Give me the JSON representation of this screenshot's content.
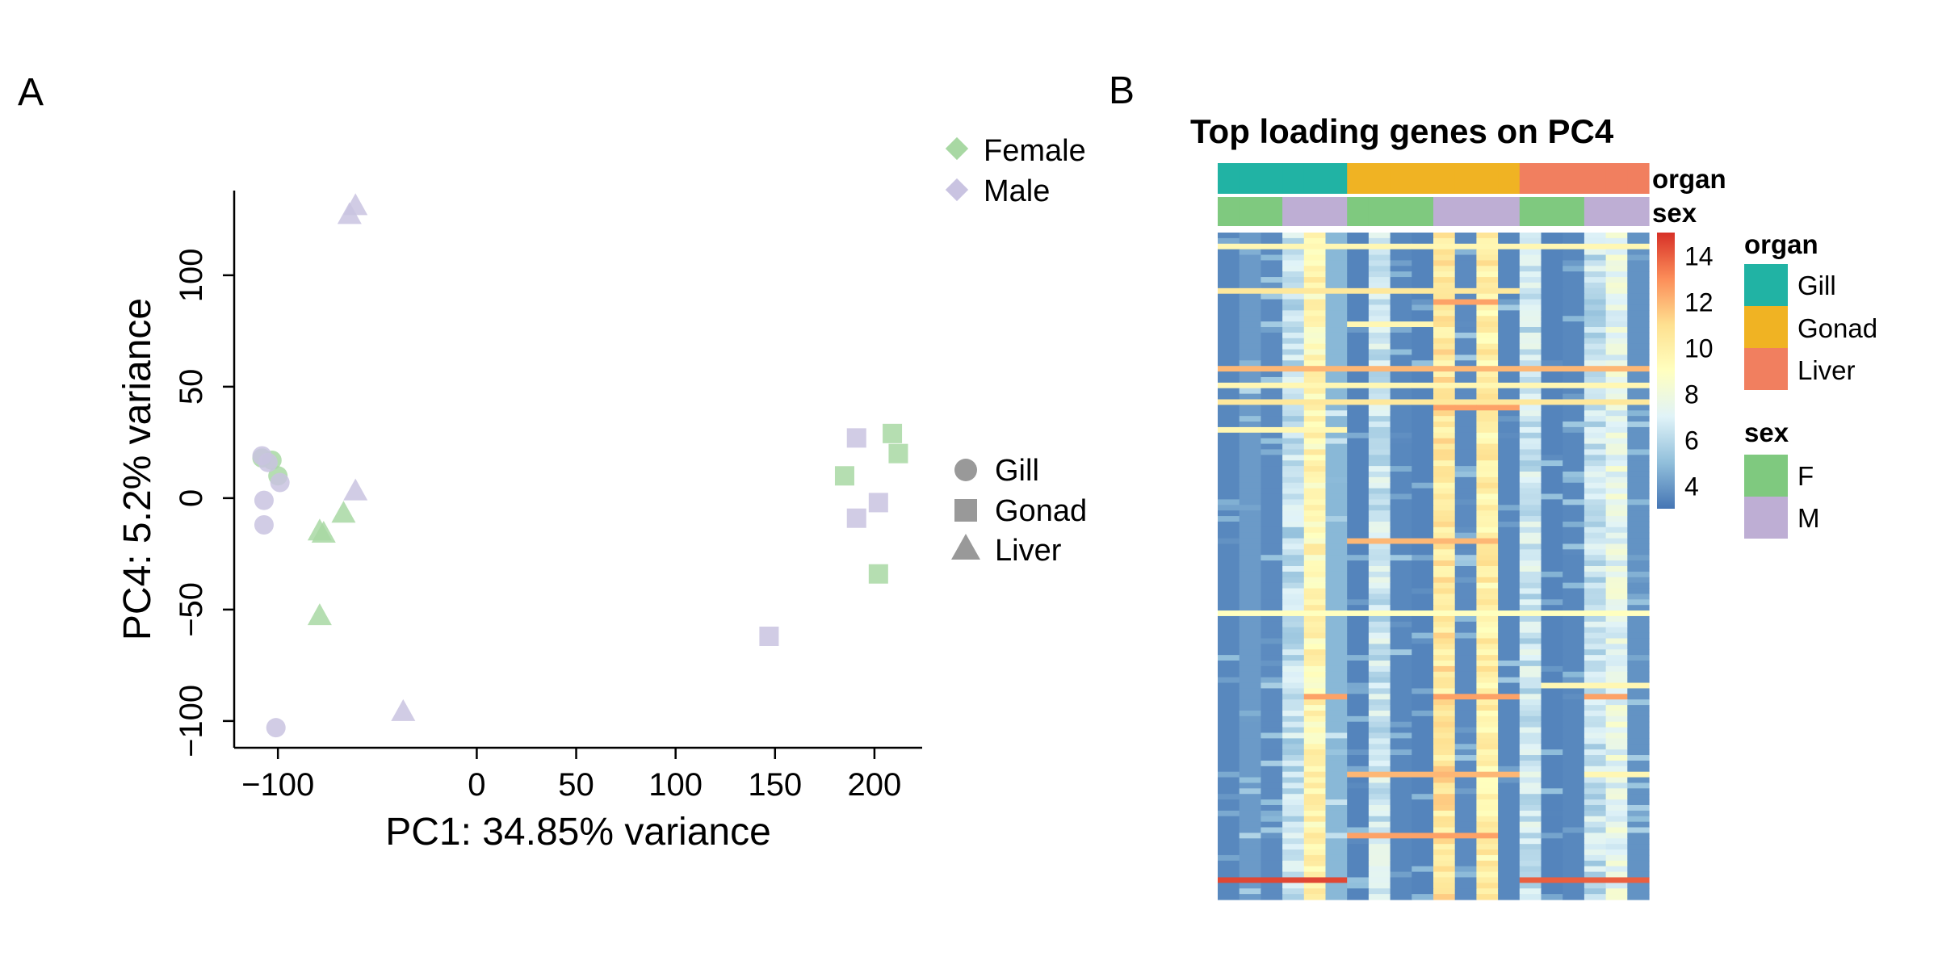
{
  "panels": {
    "a": "A",
    "b": "B"
  },
  "chart_data": [
    {
      "type": "scatter",
      "title": "",
      "xlabel": "PC1: 34.85% variance",
      "ylabel": "PC4: 5.2% variance",
      "xlim": [
        -122,
        224
      ],
      "ylim": [
        -112,
        138
      ],
      "xticks": [
        -100,
        0,
        50,
        100,
        150,
        200
      ],
      "xtick_labels": [
        "−100",
        "0",
        "50",
        "100",
        "150",
        "200"
      ],
      "yticks": [
        -100,
        -50,
        0,
        50,
        100
      ],
      "ytick_labels": [
        "−100",
        "−50",
        "0",
        "50",
        "100"
      ],
      "grid": false,
      "legend_color": {
        "items": [
          {
            "label": "Female",
            "color": "#a8d8a3"
          },
          {
            "label": "Male",
            "color": "#c9c3e1"
          }
        ]
      },
      "legend_shape": {
        "items": [
          {
            "label": "Gill",
            "shape": "circle"
          },
          {
            "label": "Gonad",
            "shape": "square"
          },
          {
            "label": "Liver",
            "shape": "triangle"
          }
        ]
      },
      "points": [
        {
          "x": -108,
          "y": 18,
          "organ": "Gill",
          "sex": "Female"
        },
        {
          "x": -103,
          "y": 17,
          "organ": "Gill",
          "sex": "Female"
        },
        {
          "x": -100,
          "y": 10,
          "organ": "Gill",
          "sex": "Female"
        },
        {
          "x": -105,
          "y": 16,
          "organ": "Gill",
          "sex": "Male"
        },
        {
          "x": -108,
          "y": 19,
          "organ": "Gill",
          "sex": "Male"
        },
        {
          "x": -99,
          "y": 7,
          "organ": "Gill",
          "sex": "Male"
        },
        {
          "x": -107,
          "y": -1,
          "organ": "Gill",
          "sex": "Male"
        },
        {
          "x": -107,
          "y": -12,
          "organ": "Gill",
          "sex": "Male"
        },
        {
          "x": -101,
          "y": -103,
          "organ": "Gill",
          "sex": "Male"
        },
        {
          "x": 185,
          "y": 10,
          "organ": "Gonad",
          "sex": "Female"
        },
        {
          "x": 209,
          "y": 29,
          "organ": "Gonad",
          "sex": "Female"
        },
        {
          "x": 212,
          "y": 20,
          "organ": "Gonad",
          "sex": "Female"
        },
        {
          "x": 202,
          "y": -34,
          "organ": "Gonad",
          "sex": "Female"
        },
        {
          "x": 191,
          "y": 27,
          "organ": "Gonad",
          "sex": "Male"
        },
        {
          "x": 191,
          "y": -9,
          "organ": "Gonad",
          "sex": "Male"
        },
        {
          "x": 202,
          "y": -2,
          "organ": "Gonad",
          "sex": "Male"
        },
        {
          "x": 147,
          "y": -62,
          "organ": "Gonad",
          "sex": "Male"
        },
        {
          "x": -79,
          "y": -15,
          "organ": "Liver",
          "sex": "Female"
        },
        {
          "x": -77,
          "y": -16,
          "organ": "Liver",
          "sex": "Female"
        },
        {
          "x": -67,
          "y": -7,
          "organ": "Liver",
          "sex": "Female"
        },
        {
          "x": -79,
          "y": -53,
          "organ": "Liver",
          "sex": "Female"
        },
        {
          "x": -61,
          "y": 131,
          "organ": "Liver",
          "sex": "Male"
        },
        {
          "x": -64,
          "y": 127,
          "organ": "Liver",
          "sex": "Male"
        },
        {
          "x": -61,
          "y": 3,
          "organ": "Liver",
          "sex": "Male"
        },
        {
          "x": -37,
          "y": -96,
          "organ": "Liver",
          "sex": "Male"
        }
      ]
    },
    {
      "type": "heatmap",
      "title": "Top loading genes on PC4",
      "n_rows": 120,
      "columns": [
        {
          "organ": "Gill",
          "sex": "F"
        },
        {
          "organ": "Gill",
          "sex": "F"
        },
        {
          "organ": "Gill",
          "sex": "F"
        },
        {
          "organ": "Gill",
          "sex": "M"
        },
        {
          "organ": "Gill",
          "sex": "M"
        },
        {
          "organ": "Gill",
          "sex": "M"
        },
        {
          "organ": "Gonad",
          "sex": "F"
        },
        {
          "organ": "Gonad",
          "sex": "F"
        },
        {
          "organ": "Gonad",
          "sex": "F"
        },
        {
          "organ": "Gonad",
          "sex": "F"
        },
        {
          "organ": "Gonad",
          "sex": "M"
        },
        {
          "organ": "Gonad",
          "sex": "M"
        },
        {
          "organ": "Gonad",
          "sex": "M"
        },
        {
          "organ": "Gonad",
          "sex": "M"
        },
        {
          "organ": "Liver",
          "sex": "F"
        },
        {
          "organ": "Liver",
          "sex": "F"
        },
        {
          "organ": "Liver",
          "sex": "F"
        },
        {
          "organ": "Liver",
          "sex": "M"
        },
        {
          "organ": "Liver",
          "sex": "M"
        },
        {
          "organ": "Liver",
          "sex": "M"
        }
      ],
      "column_profile": [
        3.5,
        4.0,
        3.6,
        6.2,
        9.5,
        4.8,
        3.4,
        6.5,
        3.5,
        3.4,
        10.5,
        3.6,
        10.0,
        3.5,
        6.5,
        3.4,
        3.5,
        6.3,
        7.5,
        3.8
      ],
      "highlight_rows": [
        {
          "row": 2,
          "cols": "all",
          "value": 9.5
        },
        {
          "row": 10,
          "cols": [
            0,
            1,
            2,
            3,
            4,
            5,
            6,
            7,
            8,
            9,
            10,
            11,
            12,
            13
          ],
          "value": 10.5
        },
        {
          "row": 12,
          "cols": [
            10,
            11,
            12
          ],
          "value": 12.5
        },
        {
          "row": 16,
          "cols": [
            6,
            7,
            8,
            9
          ],
          "value": 9.5
        },
        {
          "row": 24,
          "cols": "all",
          "value": 12.0
        },
        {
          "row": 27,
          "cols": "all",
          "value": 9.5
        },
        {
          "row": 30,
          "cols": "all",
          "value": 10.5
        },
        {
          "row": 31,
          "cols": [
            10,
            11,
            12,
            13
          ],
          "value": 12.5
        },
        {
          "row": 35,
          "cols": [
            0,
            1,
            2,
            3,
            4,
            5
          ],
          "value": 9.5
        },
        {
          "row": 55,
          "cols": [
            6,
            7,
            8,
            9,
            10,
            11,
            12
          ],
          "value": 12.0
        },
        {
          "row": 68,
          "cols": "all",
          "value": 9.0
        },
        {
          "row": 81,
          "cols": [
            15,
            16,
            17,
            18,
            19
          ],
          "value": 9.5
        },
        {
          "row": 83,
          "cols": [
            4,
            5,
            10,
            11,
            12,
            13,
            17,
            18
          ],
          "value": 12.5
        },
        {
          "row": 97,
          "cols": [
            6,
            7,
            8,
            9,
            10,
            11,
            12,
            13
          ],
          "value": 12.0
        },
        {
          "row": 97,
          "cols": [
            17,
            18,
            19
          ],
          "value": 9.5
        },
        {
          "row": 108,
          "cols": [
            6,
            7,
            8,
            9,
            10,
            11,
            12
          ],
          "value": 12.5
        },
        {
          "row": 116,
          "cols": [
            0,
            1,
            2,
            3,
            4,
            5
          ],
          "value": 14.5
        },
        {
          "row": 116,
          "cols": [
            14,
            15,
            16,
            17,
            18,
            19
          ],
          "value": 14.0
        }
      ],
      "color_scale": {
        "min": 3,
        "max": 15,
        "stops": [
          "#4575b4",
          "#91bfdb",
          "#e0f3f8",
          "#ffffbf",
          "#fee090",
          "#fc8d59",
          "#d73027"
        ]
      },
      "colorbar_ticks": [
        "4",
        "6",
        "8",
        "10",
        "12",
        "14"
      ],
      "annotation_labels": {
        "organ": "organ",
        "sex": "sex"
      },
      "legend_organ": {
        "title": "organ",
        "items": [
          {
            "label": "Gill",
            "color": "#21b3a4"
          },
          {
            "label": "Gonad",
            "color": "#f0b323"
          },
          {
            "label": "Liver",
            "color": "#f17f5f"
          }
        ]
      },
      "legend_sex": {
        "title": "sex",
        "items": [
          {
            "label": "F",
            "color": "#7fc97f"
          },
          {
            "label": "M",
            "color": "#beaed4"
          }
        ]
      }
    }
  ]
}
